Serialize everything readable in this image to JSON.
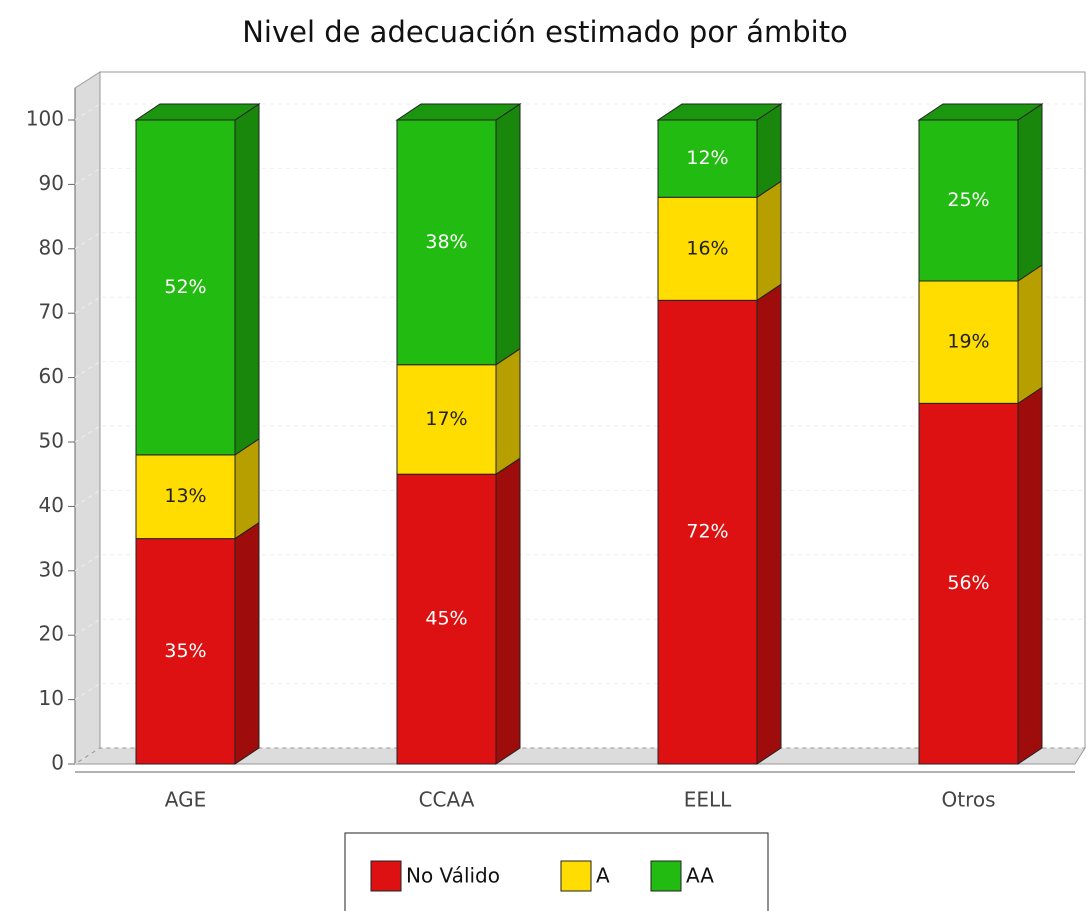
{
  "chart_data": {
    "type": "bar",
    "stacked": true,
    "title": "Nivel de adecuación estimado por ámbito",
    "categories": [
      "AGE",
      "CCAA",
      "EELL",
      "Otros"
    ],
    "series": [
      {
        "name": "No Válido",
        "color": "#dd1111",
        "values": [
          35,
          45,
          72,
          56
        ],
        "value_labels": [
          "35%",
          "45%",
          "72%",
          "56%"
        ]
      },
      {
        "name": "A",
        "color": "#ffdd00",
        "values": [
          13,
          17,
          16,
          19
        ],
        "value_labels": [
          "13%",
          "17%",
          "16%",
          "19%"
        ]
      },
      {
        "name": "AA",
        "color": "#22bb11",
        "values": [
          52,
          38,
          12,
          25
        ],
        "value_labels": [
          "52%",
          "38%",
          "12%",
          "25%"
        ]
      }
    ],
    "ylim": [
      0,
      100
    ],
    "yticks": [
      0,
      10,
      20,
      30,
      40,
      50,
      60,
      70,
      80,
      90,
      100
    ],
    "grid": true,
    "legend": "bottom"
  }
}
